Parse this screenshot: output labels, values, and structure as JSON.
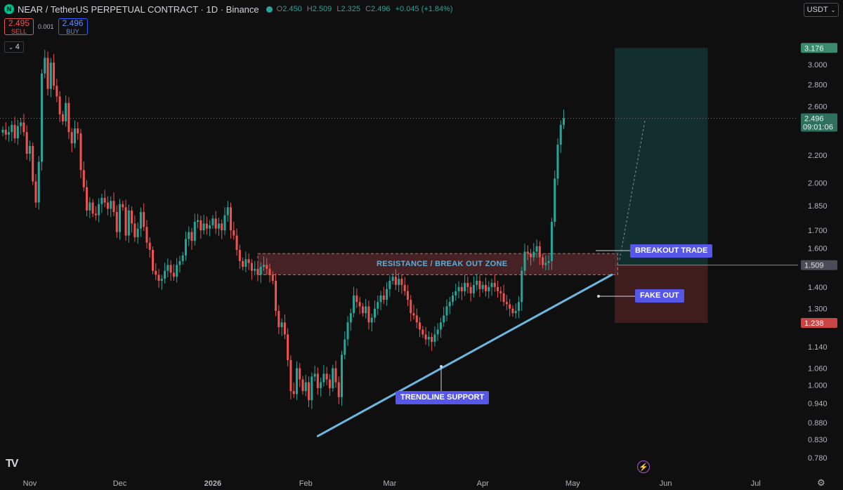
{
  "header": {
    "symbol": "NEAR / TetherUS PERPETUAL CONTRACT · 1D · Binance",
    "logo_letter": "N",
    "o_label": "O",
    "o_value": "2.450",
    "h_label": "H",
    "h_value": "2.509",
    "l_label": "L",
    "l_value": "2.325",
    "c_label": "C",
    "c_value": "2.496",
    "change": "+0.045 (+1.84%)"
  },
  "trade": {
    "sell_price": "2.495",
    "sell_label": "SELL",
    "spread": "0.001",
    "buy_price": "2.496",
    "buy_label": "BUY"
  },
  "indicator_count": "4",
  "currency_selector": "USDT",
  "annotations": {
    "zone": "RESISTANCE / BREAK OUT ZONE",
    "breakout": "BREAKOUT TRADE",
    "fakeout": "FAKE OUT",
    "trendline": "TRENDLINE SUPPORT"
  },
  "price_tags": {
    "target": "3.176",
    "current": "2.496",
    "countdown": "09:01:06",
    "entry": "1.509",
    "stop": "1.238"
  },
  "icons": [
    "tradingview-logo",
    "lightning-icon",
    "settings-gear-icon",
    "chevron-down-icon"
  ],
  "colors": {
    "up": "#26a69a",
    "down": "#ef5350",
    "trendline": "#6cb8e0",
    "zone": "#5a2a2e",
    "target_zone": "#26a69a",
    "stop_zone": "#ef5350",
    "label": "#5656e8"
  },
  "chart_data": {
    "type": "candlestick",
    "yscale": "log",
    "ylim": [
      0.75,
      3.3
    ],
    "y_ticks": [
      "3.000",
      "2.800",
      "2.600",
      "2.200",
      "2.000",
      "1.850",
      "1.700",
      "1.600",
      "1.400",
      "1.300",
      "1.140",
      "1.060",
      "1.000",
      "0.940",
      "0.880",
      "0.830",
      "0.780"
    ],
    "x_ticks": [
      "Nov",
      "Dec",
      "2026",
      "Feb",
      "Mar",
      "Apr",
      "May",
      "Jun",
      "Jul"
    ],
    "x_tick_dates": [
      "2025-11-01",
      "2025-12-01",
      "2026-01-01",
      "2026-02-01",
      "2026-03-01",
      "2026-04-01",
      "2026-05-01",
      "2026-06-01",
      "2026-07-01"
    ],
    "start_date": "2025-10-23",
    "closes": [
      2.4,
      2.36,
      2.38,
      2.44,
      2.33,
      2.43,
      2.46,
      2.38,
      2.21,
      2.27,
      2.01,
      1.87,
      2.15,
      2.91,
      3.07,
      2.76,
      3.02,
      2.79,
      2.69,
      2.53,
      2.47,
      2.63,
      2.38,
      2.29,
      2.41,
      2.37,
      2.09,
      1.97,
      1.82,
      1.87,
      1.8,
      1.79,
      1.86,
      1.9,
      1.87,
      1.83,
      1.88,
      1.81,
      1.69,
      1.86,
      1.84,
      1.67,
      1.82,
      1.74,
      1.66,
      1.71,
      1.81,
      1.72,
      1.63,
      1.59,
      1.48,
      1.46,
      1.43,
      1.44,
      1.48,
      1.51,
      1.47,
      1.45,
      1.51,
      1.53,
      1.56,
      1.65,
      1.69,
      1.64,
      1.75,
      1.76,
      1.7,
      1.74,
      1.71,
      1.73,
      1.77,
      1.71,
      1.74,
      1.7,
      1.79,
      1.84,
      1.7,
      1.67,
      1.59,
      1.53,
      1.5,
      1.54,
      1.52,
      1.48,
      1.49,
      1.46,
      1.5,
      1.51,
      1.49,
      1.46,
      1.43,
      1.29,
      1.22,
      1.24,
      1.19,
      1.09,
      0.98,
      0.97,
      1.06,
      1.02,
      0.98,
      1.01,
      0.95,
      1.03,
      1.04,
      0.99,
      1.01,
      1.04,
      1.02,
      0.99,
      1.06,
      1.01,
      0.96,
      1.11,
      1.17,
      1.24,
      1.28,
      1.36,
      1.33,
      1.31,
      1.28,
      1.31,
      1.24,
      1.26,
      1.3,
      1.33,
      1.36,
      1.34,
      1.39,
      1.43,
      1.45,
      1.41,
      1.44,
      1.41,
      1.38,
      1.34,
      1.28,
      1.27,
      1.24,
      1.21,
      1.19,
      1.17,
      1.18,
      1.16,
      1.19,
      1.21,
      1.24,
      1.27,
      1.31,
      1.33,
      1.36,
      1.38,
      1.4,
      1.38,
      1.42,
      1.4,
      1.37,
      1.41,
      1.43,
      1.39,
      1.41,
      1.38,
      1.4,
      1.42,
      1.4,
      1.38,
      1.37,
      1.33,
      1.32,
      1.3,
      1.28,
      1.29,
      1.33,
      1.48,
      1.58,
      1.57,
      1.55,
      1.58,
      1.61,
      1.55,
      1.51,
      1.52,
      1.53,
      1.75,
      2.03,
      2.28,
      2.44,
      2.496
    ],
    "markers": {
      "resistance_zone": [
        1.46,
        1.57
      ],
      "trendline": {
        "from": {
          "date": "2026-02-05",
          "price": 0.84
        },
        "to": {
          "date": "2026-05-14",
          "price": 1.46
        }
      },
      "long_position": {
        "start": "2026-05-15",
        "end": "2026-06-15",
        "entry": 1.509,
        "target": 3.176,
        "stop": 1.238
      }
    }
  }
}
